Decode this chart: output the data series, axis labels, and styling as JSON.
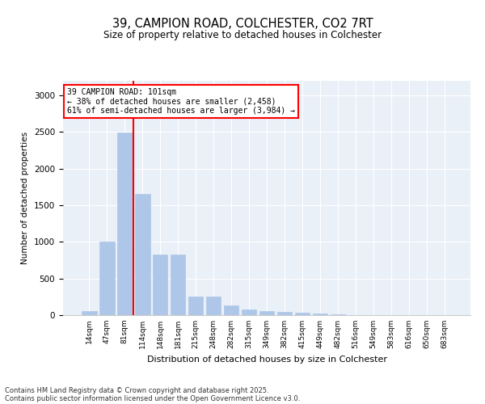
{
  "title_line1": "39, CAMPION ROAD, COLCHESTER, CO2 7RT",
  "title_line2": "Size of property relative to detached houses in Colchester",
  "xlabel": "Distribution of detached houses by size in Colchester",
  "ylabel": "Number of detached properties",
  "categories": [
    "14sqm",
    "47sqm",
    "81sqm",
    "114sqm",
    "148sqm",
    "181sqm",
    "215sqm",
    "248sqm",
    "282sqm",
    "315sqm",
    "349sqm",
    "382sqm",
    "415sqm",
    "449sqm",
    "482sqm",
    "516sqm",
    "549sqm",
    "583sqm",
    "616sqm",
    "650sqm",
    "683sqm"
  ],
  "values": [
    50,
    1000,
    2490,
    1660,
    830,
    830,
    255,
    255,
    130,
    75,
    55,
    45,
    35,
    20,
    8,
    5,
    3,
    2,
    1,
    1,
    0
  ],
  "bar_color": "#aec6e8",
  "bar_edge_color": "#aec6e8",
  "annotation_text": "39 CAMPION ROAD: 101sqm\n← 38% of detached houses are smaller (2,458)\n61% of semi-detached houses are larger (3,984) →",
  "box_color": "white",
  "box_edge_color": "red",
  "ylim": [
    0,
    3200
  ],
  "yticks": [
    0,
    500,
    1000,
    1500,
    2000,
    2500,
    3000
  ],
  "background_color": "#eaf0f8",
  "footer_line1": "Contains HM Land Registry data © Crown copyright and database right 2025.",
  "footer_line2": "Contains public sector information licensed under the Open Government Licence v3.0."
}
